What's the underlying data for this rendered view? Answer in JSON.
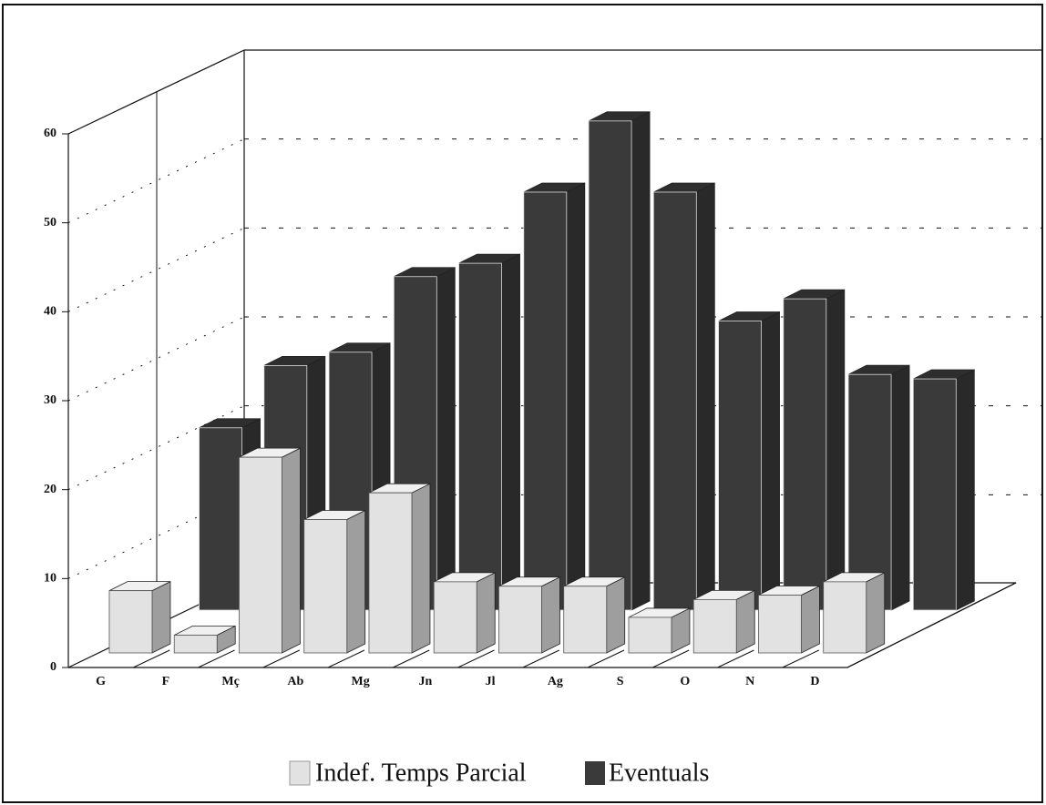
{
  "chart_data": {
    "type": "bar3d",
    "categories": [
      "G",
      "F",
      "Mç",
      "Ab",
      "Mg",
      "Jn",
      "Jl",
      "Ag",
      "S",
      "O",
      "N",
      "D"
    ],
    "series": [
      {
        "name": "Indef. Temps Parcial",
        "color": "#e2e2e2",
        "values": [
          7,
          2,
          22,
          15,
          18,
          8,
          7.5,
          7.5,
          4,
          6,
          6.5,
          8
        ]
      },
      {
        "name": "Eventuals",
        "color": "#3a3a3a",
        "values": [
          20.5,
          27.5,
          29,
          37.5,
          39,
          47,
          55,
          47,
          32.5,
          35,
          26.5,
          26
        ]
      }
    ],
    "ylim": [
      0,
      60
    ],
    "yticks": [
      0,
      10,
      20,
      30,
      40,
      50,
      60
    ],
    "grid": true
  }
}
